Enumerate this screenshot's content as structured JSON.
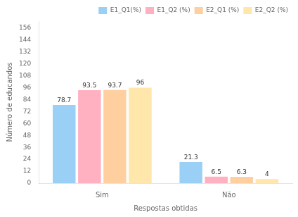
{
  "chart_data": {
    "type": "bar",
    "categories": [
      "Sim",
      "Não"
    ],
    "series": [
      {
        "name": "E1_Q1(%)",
        "values": [
          78.7,
          21.3
        ]
      },
      {
        "name": "E1_Q2 (%)",
        "values": [
          93.5,
          6.5
        ]
      },
      {
        "name": "E2_Q1 (%)",
        "values": [
          93.7,
          6.3
        ]
      },
      {
        "name": "E2_Q2 (%)",
        "values": [
          96,
          4
        ]
      }
    ],
    "xlabel": "Respostas obtidas",
    "ylabel": "Número de educandos",
    "ylim": [
      0,
      163
    ],
    "yticks": [
      0,
      12,
      24,
      36,
      48,
      60,
      72,
      84,
      96,
      108,
      120,
      132,
      144,
      156
    ],
    "grid": false,
    "legend": "upper right",
    "data_labels": true
  }
}
